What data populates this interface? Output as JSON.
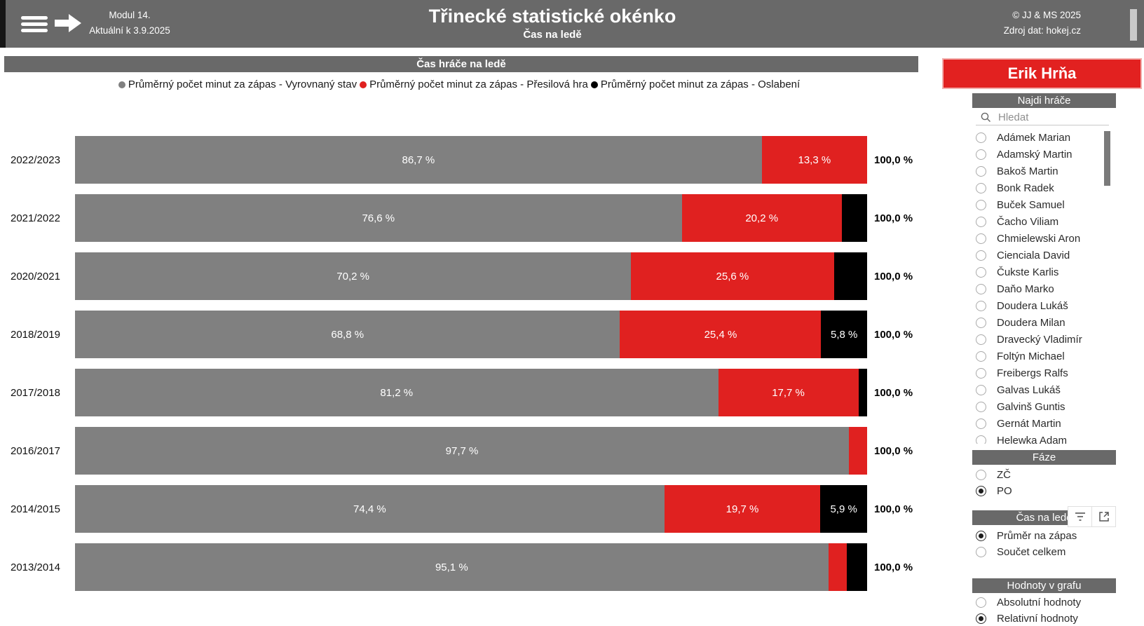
{
  "header": {
    "module": "Modul 14.",
    "updated": "Aktuální k 3.9.2025",
    "title": "Třinecké statistické okénko",
    "subtitle": "Čas na ledě",
    "copyright": "© JJ & MS 2025",
    "source": "Zdroj dat: hokej.cz"
  },
  "chart": {
    "title": "Čas hráče na ledě",
    "legend": [
      {
        "label": "Průměrný počet minut za zápas - Vyrovnaný stav",
        "color": "#808080",
        "icon": "legend-dot-gray"
      },
      {
        "label": "Průměrný počet minut za zápas - Přesilová hra",
        "color": "#e02120",
        "icon": "legend-dot-red"
      },
      {
        "label": "Průměrný počet minut za zápas - Oslabení",
        "color": "#000000",
        "icon": "legend-dot-black"
      }
    ]
  },
  "chart_data": {
    "type": "bar",
    "orientation": "horizontal-stacked",
    "unit": "percent",
    "xlim": [
      0,
      100
    ],
    "grid": false,
    "legend_position": "top-center",
    "categories": [
      "2022/2023",
      "2021/2022",
      "2020/2021",
      "2018/2019",
      "2017/2018",
      "2016/2017",
      "2014/2015",
      "2013/2014"
    ],
    "series": [
      {
        "name": "Průměrný počet minut za zápas - Vyrovnaný stav",
        "key": "vyrovnany-stav",
        "color": "#808080",
        "values": [
          86.7,
          76.6,
          70.2,
          68.8,
          81.2,
          97.7,
          74.4,
          95.1
        ]
      },
      {
        "name": "Průměrný počet minut za zápas - Přesilová hra",
        "key": "presilova-hra",
        "color": "#e02120",
        "values": [
          13.3,
          20.2,
          25.6,
          25.4,
          17.7,
          2.3,
          19.7,
          2.3
        ]
      },
      {
        "name": "Průměrný počet minut za zápas - Oslabení",
        "key": "oslabeni",
        "color": "#000000",
        "values": [
          0,
          3.2,
          4.2,
          5.8,
          1.1,
          0,
          5.9,
          2.6
        ]
      }
    ],
    "segment_labels": [
      [
        "86,7 %",
        "13,3 %",
        null
      ],
      [
        "76,6 %",
        "20,2 %",
        null
      ],
      [
        "70,2 %",
        "25,6 %",
        null
      ],
      [
        "68,8 %",
        "25,4 %",
        "5,8 %"
      ],
      [
        "81,2 %",
        "17,7 %",
        null
      ],
      [
        "97,7 %",
        null,
        null
      ],
      [
        "74,4 %",
        "19,7 %",
        "5,9 %"
      ],
      [
        "95,1 %",
        null,
        null
      ]
    ],
    "total_label": "100,0 %"
  },
  "sidebar": {
    "selected_player": "Erik Hrňa",
    "search": {
      "header": "Najdi hráče",
      "placeholder": "Hledat"
    },
    "players": [
      "Adámek Marian",
      "Adamský Martin",
      "Bakoš Martin",
      "Bonk Radek",
      "Buček Samuel",
      "Čacho Viliam",
      "Chmielewski Aron",
      "Cienciala David",
      "Čukste Karlis",
      "Daňo Marko",
      "Doudera Lukáš",
      "Doudera Milan",
      "Dravecký Vladimír",
      "Foltýn Michael",
      "Freibergs Ralfs",
      "Galvas Lukáš",
      "Galvinš Guntis",
      "Gernát Martin",
      "Helewka Adam"
    ],
    "faze": {
      "header": "Fáze",
      "options": [
        {
          "label": "ZČ",
          "selected": false
        },
        {
          "label": "PO",
          "selected": true
        }
      ]
    },
    "cas_na_lede": {
      "header": "Čas na ledě",
      "options": [
        {
          "label": "Průměr na zápas",
          "selected": true
        },
        {
          "label": "Součet celkem",
          "selected": false
        }
      ]
    },
    "hodnoty": {
      "header": "Hodnoty v grafu",
      "options": [
        {
          "label": "Absolutní hodnoty",
          "selected": false
        },
        {
          "label": "Relativní hodnoty",
          "selected": true
        }
      ]
    }
  },
  "colors": {
    "header_gray": "#696969",
    "bar_gray": "#808080",
    "accent_red": "#e02120",
    "black": "#000000"
  }
}
